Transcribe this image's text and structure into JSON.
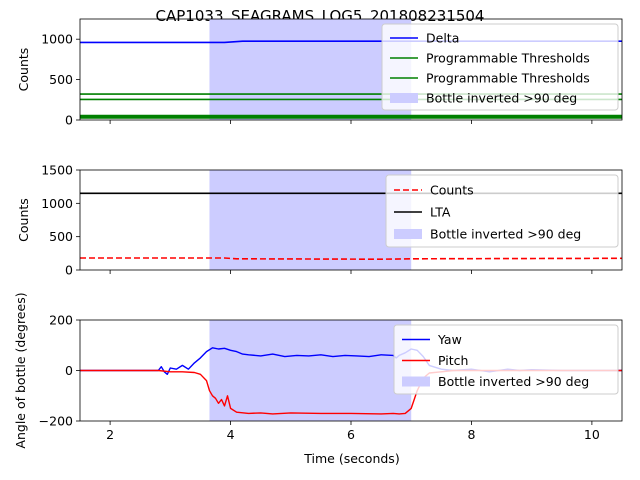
{
  "chart_data": {
    "title": "CAP1033_SEAGRAMS_LOG5_201808231504",
    "shared_x": {
      "label": "Time (seconds)",
      "lim": [
        1.5,
        10.5
      ],
      "ticks": [
        2,
        4,
        6,
        8,
        10
      ],
      "tick_labels": [
        "2",
        "4",
        "6",
        "8",
        "10"
      ]
    },
    "highlight": {
      "name": "Bottle inverted >90 deg",
      "x0": 3.65,
      "x1": 7.0,
      "color": "#ccccff"
    },
    "panels": [
      {
        "type": "line",
        "ylabel": "Counts",
        "ylim": [
          0,
          1250
        ],
        "yticks": [
          0,
          500,
          1000
        ],
        "ytick_labels": [
          "0",
          "500",
          "1000"
        ],
        "series": [
          {
            "name": "Delta",
            "color": "#0000ff",
            "dash": "",
            "width": 1.6,
            "x": [
              1.5,
              3.9,
              4.2,
              10.5
            ],
            "y": [
              960,
              960,
              975,
              975
            ]
          },
          {
            "name": "Programmable Thresholds",
            "color": "#008000",
            "dash": "",
            "width": 1.6,
            "x": [
              1.5,
              10.5
            ],
            "y": [
              320,
              320
            ]
          },
          {
            "name": "Programmable Thresholds",
            "color": "#008000",
            "dash": "",
            "width": 1.6,
            "x": [
              1.5,
              10.5
            ],
            "y": [
              255,
              255
            ]
          },
          {
            "name": "",
            "color": "#008000",
            "dash": "",
            "width": 4,
            "x": [
              1.5,
              10.5
            ],
            "y": [
              40,
              40
            ]
          }
        ],
        "legend": {
          "placement": "upper-right",
          "entries": [
            {
              "label": "Delta",
              "kind": "line",
              "color": "#0000ff",
              "dash": ""
            },
            {
              "label": "Programmable Thresholds",
              "kind": "line",
              "color": "#008000",
              "dash": ""
            },
            {
              "label": "Programmable Thresholds",
              "kind": "line",
              "color": "#008000",
              "dash": ""
            },
            {
              "label": "Bottle inverted >90 deg",
              "kind": "patch",
              "color": "#ccccff",
              "dash": ""
            }
          ]
        }
      },
      {
        "type": "line",
        "ylabel": "Counts",
        "ylim": [
          0,
          1500
        ],
        "yticks": [
          0,
          500,
          1000,
          1500
        ],
        "ytick_labels": [
          "0",
          "500",
          "1000",
          "1500"
        ],
        "series": [
          {
            "name": "Counts",
            "color": "#ff0000",
            "dash": "6,3",
            "width": 1.6,
            "x": [
              1.5,
              3.9,
              4.1,
              6.5,
              7.0,
              10.5
            ],
            "y": [
              180,
              180,
              168,
              162,
              168,
              175
            ]
          },
          {
            "name": "LTA",
            "color": "#000000",
            "dash": "",
            "width": 1.6,
            "x": [
              1.5,
              10.5
            ],
            "y": [
              1150,
              1150
            ]
          }
        ],
        "legend": {
          "placement": "upper-right",
          "entries": [
            {
              "label": "Counts",
              "kind": "line",
              "color": "#ff0000",
              "dash": "6,3"
            },
            {
              "label": "LTA",
              "kind": "line",
              "color": "#000000",
              "dash": ""
            },
            {
              "label": "Bottle inverted >90 deg",
              "kind": "patch",
              "color": "#ccccff",
              "dash": ""
            }
          ]
        }
      },
      {
        "type": "line",
        "ylabel": "Angle of bottle (degrees)",
        "ylim": [
          -200,
          200
        ],
        "yticks": [
          -200,
          0,
          200
        ],
        "ytick_labels": [
          "−200",
          "0",
          "200"
        ],
        "series": [
          {
            "name": "Yaw",
            "color": "#0000ff",
            "dash": "",
            "width": 1.4,
            "x": [
              1.5,
              2.8,
              2.85,
              2.9,
              2.95,
              3.0,
              3.1,
              3.2,
              3.3,
              3.4,
              3.5,
              3.6,
              3.7,
              3.8,
              3.9,
              4.0,
              4.1,
              4.2,
              4.3,
              4.5,
              4.7,
              4.9,
              5.1,
              5.3,
              5.5,
              5.7,
              5.9,
              6.1,
              6.3,
              6.5,
              6.7,
              6.75,
              6.8,
              6.9,
              7.0,
              7.1,
              7.2,
              7.3,
              7.5,
              7.7,
              8.0,
              8.3,
              8.6,
              8.8,
              9.0,
              9.5,
              10.0,
              10.5
            ],
            "y": [
              0,
              0,
              15,
              -5,
              -15,
              10,
              5,
              20,
              5,
              30,
              50,
              75,
              90,
              85,
              88,
              80,
              75,
              65,
              62,
              58,
              65,
              55,
              60,
              58,
              62,
              55,
              60,
              58,
              55,
              62,
              60,
              50,
              60,
              70,
              85,
              80,
              55,
              20,
              5,
              0,
              5,
              -5,
              5,
              0,
              3,
              0,
              0,
              0
            ]
          },
          {
            "name": "Pitch",
            "color": "#ff0000",
            "dash": "",
            "width": 1.4,
            "x": [
              1.5,
              2.8,
              3.0,
              3.2,
              3.4,
              3.5,
              3.6,
              3.65,
              3.7,
              3.75,
              3.8,
              3.85,
              3.9,
              3.95,
              4.0,
              4.1,
              4.3,
              4.5,
              4.7,
              5.0,
              5.5,
              6.0,
              6.5,
              6.7,
              6.8,
              6.9,
              7.0,
              7.1,
              7.2,
              7.3,
              7.5,
              7.7,
              8.0,
              8.5,
              9.0,
              9.5,
              10.0,
              10.5
            ],
            "y": [
              0,
              0,
              -5,
              -5,
              -8,
              -15,
              -40,
              -80,
              -100,
              -110,
              -130,
              -115,
              -140,
              -100,
              -150,
              -165,
              -170,
              -168,
              -172,
              -168,
              -170,
              -170,
              -172,
              -170,
              -172,
              -170,
              -150,
              -80,
              -30,
              -10,
              -5,
              0,
              0,
              0,
              0,
              0,
              0,
              0
            ]
          }
        ],
        "legend": {
          "placement": "upper-right",
          "entries": [
            {
              "label": "Yaw",
              "kind": "line",
              "color": "#0000ff",
              "dash": ""
            },
            {
              "label": "Pitch",
              "kind": "line",
              "color": "#ff0000",
              "dash": ""
            },
            {
              "label": "Bottle inverted >90 deg",
              "kind": "patch",
              "color": "#ccccff",
              "dash": ""
            }
          ]
        }
      }
    ]
  }
}
